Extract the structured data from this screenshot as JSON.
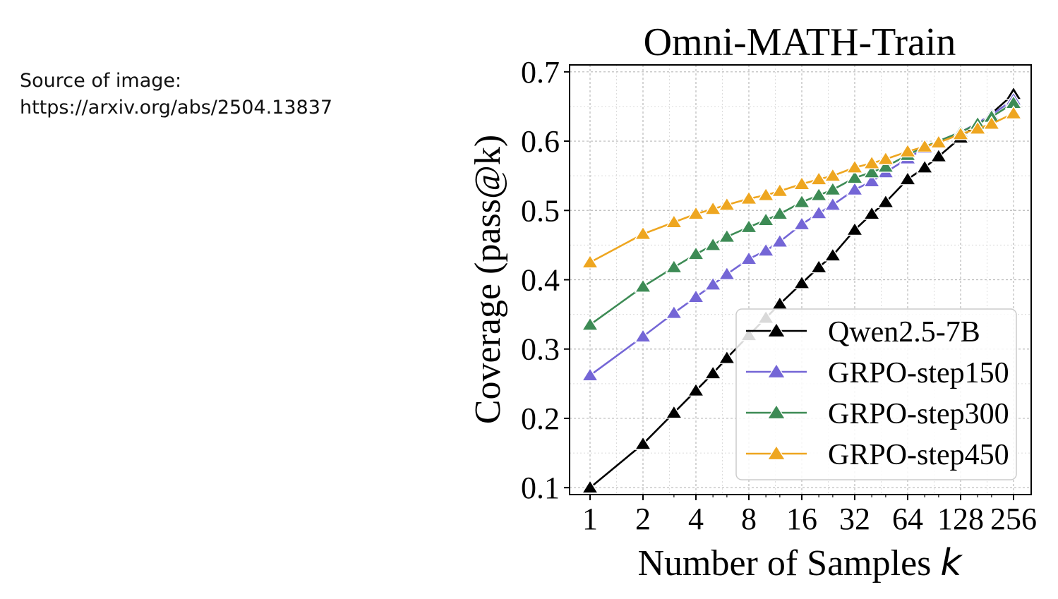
{
  "source_note": {
    "line1": "Source of image:",
    "line2": "https://arxiv.org/abs/2504.13837"
  },
  "chart_data": {
    "type": "line",
    "title": "Omni-MATH-Train",
    "xlabel": "Number of Samples",
    "xlabel_var": "k",
    "ylabel": "Coverage (pass@k)",
    "x_scale": "log2",
    "xlim": [
      1,
      256
    ],
    "ylim": [
      0.09,
      0.71
    ],
    "x_ticks": [
      1,
      2,
      4,
      8,
      16,
      32,
      64,
      128,
      256
    ],
    "x_tick_labels": [
      "1",
      "2",
      "4",
      "8",
      "16",
      "32",
      "64",
      "128",
      "256"
    ],
    "y_ticks": [
      0.1,
      0.2,
      0.3,
      0.4,
      0.5,
      0.6,
      0.7
    ],
    "y_tick_labels": [
      "0.1",
      "0.2",
      "0.3",
      "0.4",
      "0.5",
      "0.6",
      "0.7"
    ],
    "grid": true,
    "legend_position": "lower-right",
    "x": [
      1,
      2,
      3,
      4,
      5,
      6,
      8,
      10,
      12,
      16,
      20,
      24,
      32,
      40,
      48,
      64,
      80,
      96,
      128,
      160,
      192,
      256
    ],
    "series": [
      {
        "name": "Qwen2.5-7B",
        "color": "#000000",
        "values": [
          0.1,
          0.163,
          0.208,
          0.24,
          0.265,
          0.287,
          0.32,
          0.345,
          0.365,
          0.395,
          0.418,
          0.435,
          0.472,
          0.495,
          0.512,
          0.545,
          0.562,
          0.578,
          0.605,
          0.625,
          0.64,
          0.668
        ]
      },
      {
        "name": "GRPO-step150",
        "color": "#7466d6",
        "values": [
          0.262,
          0.318,
          0.352,
          0.375,
          0.393,
          0.408,
          0.43,
          0.442,
          0.455,
          0.48,
          0.496,
          0.508,
          0.53,
          0.542,
          0.555,
          0.575,
          0.59,
          0.6,
          0.613,
          0.626,
          0.638,
          0.66
        ]
      },
      {
        "name": "GRPO-step300",
        "color": "#3d8b55",
        "values": [
          0.335,
          0.39,
          0.418,
          0.437,
          0.45,
          0.462,
          0.476,
          0.486,
          0.495,
          0.512,
          0.522,
          0.53,
          0.547,
          0.555,
          0.563,
          0.58,
          0.592,
          0.6,
          0.613,
          0.625,
          0.635,
          0.655
        ]
      },
      {
        "name": "GRPO-step450",
        "color": "#eea620",
        "values": [
          0.425,
          0.466,
          0.483,
          0.495,
          0.502,
          0.508,
          0.517,
          0.522,
          0.528,
          0.538,
          0.545,
          0.55,
          0.562,
          0.568,
          0.574,
          0.585,
          0.592,
          0.598,
          0.61,
          0.618,
          0.625,
          0.64
        ]
      }
    ]
  }
}
